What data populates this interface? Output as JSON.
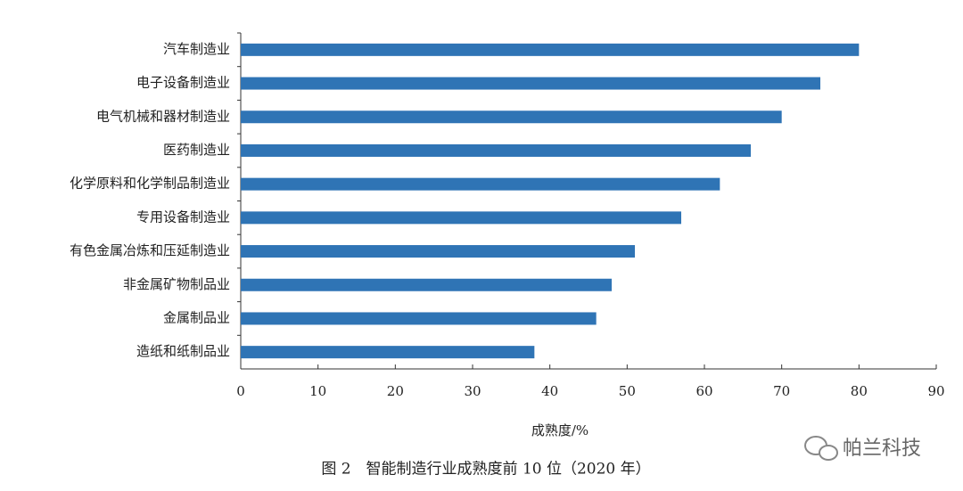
{
  "chart_data": {
    "type": "hbar",
    "categories": [
      "汽车制造业",
      "电子设备制造业",
      "电气机械和器材制造业",
      "医药制造业",
      "化学原料和化学制品制造业",
      "专用设备制造业",
      "有色金属冶炼和压延制造业",
      "非金属矿物制品业",
      "金属制品业",
      "造纸和纸制品业"
    ],
    "values": [
      80,
      75,
      70,
      66,
      62,
      57,
      51,
      48,
      46,
      38
    ],
    "color": "#2f74b5",
    "xlim": [
      0,
      90
    ],
    "xticks": [
      0,
      10,
      20,
      30,
      40,
      50,
      60,
      70,
      80,
      90
    ],
    "x_label": "成熟度/%",
    "caption": "图 2　智能制造行业成熟度前 10 位（2020 年）",
    "watermark": "帕兰科技"
  }
}
